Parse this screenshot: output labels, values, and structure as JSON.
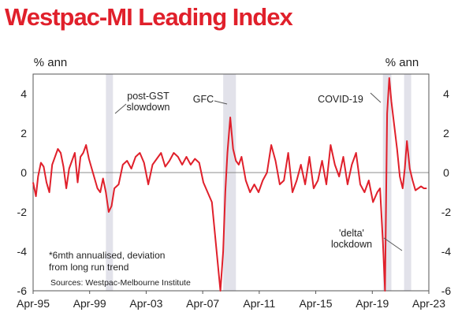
{
  "title": "Westpac-MI Leading Index",
  "chart_data": {
    "type": "line",
    "title": "Westpac-MI Leading Index",
    "ylabel_left": "% ann",
    "ylabel_right": "% ann",
    "ylim": [
      -6,
      5
    ],
    "yticks": [
      4,
      2,
      0,
      -2,
      -4,
      -6
    ],
    "xtick_labels": [
      "Apr-95",
      "Apr-99",
      "Apr-03",
      "Apr-07",
      "Apr-11",
      "Apr-15",
      "Apr-19",
      "Apr-23"
    ],
    "xtick_years": [
      1995.25,
      1999.25,
      2003.25,
      2007.25,
      2011.25,
      2015.25,
      2019.25,
      2023.25
    ],
    "xlim": [
      1995.25,
      2023.25
    ],
    "grid": false,
    "zero_line": true,
    "shaded_periods": [
      {
        "start": 2000.4,
        "end": 2000.9
      },
      {
        "start": 2008.7,
        "end": 2009.6
      },
      {
        "start": 2020.0,
        "end": 2020.6
      },
      {
        "start": 2021.5,
        "end": 2022.0
      }
    ],
    "annotations": [
      {
        "lines": [
          "post-GST",
          "slowdown"
        ],
        "x": 2000.9,
        "y": 3.0
      },
      {
        "lines": [
          "GFC"
        ],
        "x": 2008.9,
        "y": 3.5
      },
      {
        "lines": [
          "COVID-19"
        ],
        "x": 2019.9,
        "y": 3.5
      },
      {
        "lines": [
          "'delta'",
          "lockdown"
        ],
        "x": 2021.5,
        "y": -4.0
      }
    ],
    "series": [
      {
        "color": "#e0202b",
        "x": [
          1995.25,
          1995.45,
          1995.6,
          1995.8,
          1996.0,
          1996.2,
          1996.4,
          1996.6,
          1996.8,
          1997.0,
          1997.2,
          1997.4,
          1997.6,
          1997.8,
          1998.0,
          1998.2,
          1998.4,
          1998.6,
          1998.8,
          1999.0,
          1999.2,
          1999.4,
          1999.6,
          1999.8,
          2000.0,
          2000.2,
          2000.4,
          2000.6,
          2000.8,
          2001.0,
          2001.3,
          2001.6,
          2001.9,
          2002.2,
          2002.5,
          2002.8,
          2003.1,
          2003.4,
          2003.7,
          2004.0,
          2004.3,
          2004.6,
          2004.9,
          2005.2,
          2005.5,
          2005.8,
          2006.1,
          2006.4,
          2006.7,
          2007.0,
          2007.3,
          2007.6,
          2007.9,
          2008.1,
          2008.3,
          2008.5,
          2008.7,
          2008.85,
          2009.0,
          2009.2,
          2009.4,
          2009.6,
          2009.8,
          2010.0,
          2010.3,
          2010.6,
          2010.9,
          2011.2,
          2011.5,
          2011.8,
          2012.1,
          2012.4,
          2012.7,
          2013.0,
          2013.3,
          2013.6,
          2013.9,
          2014.2,
          2014.5,
          2014.8,
          2015.1,
          2015.4,
          2015.7,
          2016.0,
          2016.3,
          2016.6,
          2016.9,
          2017.2,
          2017.5,
          2017.8,
          2018.1,
          2018.4,
          2018.7,
          2019.0,
          2019.3,
          2019.6,
          2019.8,
          2020.0,
          2020.15,
          2020.3,
          2020.45,
          2020.6,
          2020.8,
          2021.0,
          2021.2,
          2021.4,
          2021.55,
          2021.7,
          2021.9,
          2022.1,
          2022.3,
          2022.5,
          2022.7,
          2022.9,
          2023.1
        ],
        "y": [
          -0.5,
          -1.2,
          -0.2,
          0.5,
          0.3,
          -0.5,
          -1.0,
          0.4,
          0.8,
          1.2,
          1.0,
          0.3,
          -0.8,
          0.2,
          0.6,
          1.0,
          -0.5,
          0.8,
          1.0,
          1.4,
          0.7,
          0.2,
          -0.3,
          -0.8,
          -1.0,
          -0.3,
          -1.0,
          -2.0,
          -1.7,
          -0.8,
          -0.6,
          0.4,
          0.6,
          0.2,
          0.8,
          1.0,
          0.5,
          -0.6,
          0.4,
          0.7,
          1.0,
          0.3,
          0.6,
          1.0,
          0.8,
          0.4,
          0.8,
          0.4,
          0.7,
          0.5,
          -0.5,
          -1.0,
          -1.5,
          -3.0,
          -4.5,
          -6.0,
          -4.0,
          -1.0,
          1.0,
          2.8,
          1.2,
          0.6,
          0.4,
          0.8,
          -0.4,
          -1.0,
          -0.6,
          -1.0,
          -0.4,
          0.0,
          1.4,
          0.6,
          -0.6,
          -0.4,
          1.0,
          -1.0,
          -0.4,
          0.4,
          -0.6,
          0.8,
          -0.8,
          -0.4,
          0.6,
          -0.6,
          1.4,
          0.4,
          -0.2,
          0.8,
          -0.6,
          0.4,
          1.0,
          -0.6,
          -1.0,
          -0.4,
          -1.5,
          -1.0,
          -0.8,
          -3.5,
          -6.0,
          3.0,
          4.8,
          3.6,
          2.4,
          1.2,
          -0.2,
          -0.8,
          0.2,
          1.6,
          0.2,
          -0.4,
          -0.9,
          -0.8,
          -0.7,
          -0.8,
          -0.8
        ]
      }
    ],
    "footnote": "*6mth annualised, deviation from long run trend",
    "footnote_lines": [
      "*6mth annualised, deviation",
      "from long run trend"
    ],
    "source": "Sources: Westpac-Melbourne Institute"
  }
}
